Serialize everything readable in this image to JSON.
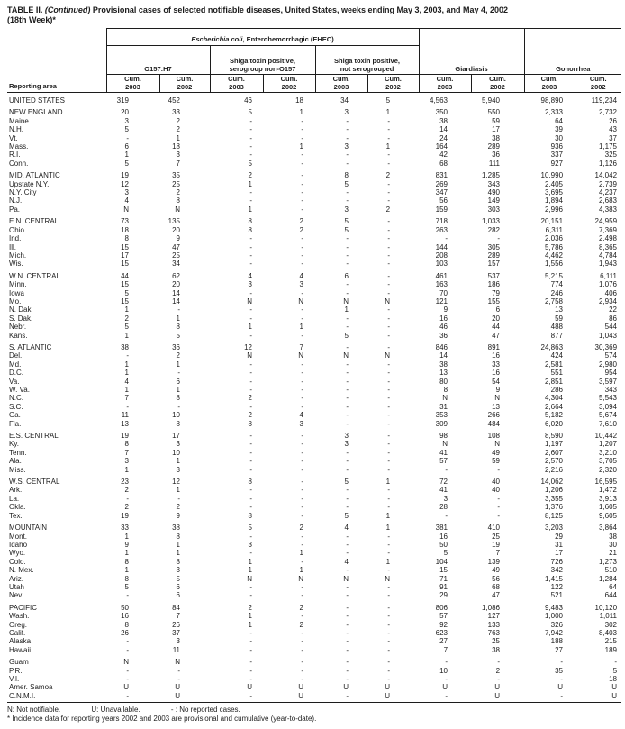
{
  "colors": {
    "ink": "#1c1c1c",
    "background": "#ffffff"
  },
  "title": {
    "label": "TABLE II.",
    "continued": "(Continued)",
    "rest": "Provisional cases of selected notifiable diseases, United States, weeks ending May 3, 2003, and May 4, 2002",
    "line2": "(18th Week)*"
  },
  "table": {
    "header": {
      "reporting_area": "Reporting area",
      "ehec_italic": "Escherichia coli",
      "ehec_rest": ", Enterohemorrhagic (EHEC)",
      "subgroups": [
        [
          "O157:H7"
        ],
        [
          "Shiga toxin positive,",
          "serogroup non-O157"
        ],
        [
          "Shiga toxin positive,",
          "not serogrouped"
        ],
        [
          "Giardiasis"
        ],
        [
          "Gonorrhea"
        ]
      ],
      "cum_label": "Cum.",
      "cum_years": [
        "2003",
        "2002",
        "2003",
        "2002",
        "2003",
        "2002",
        "2003",
        "2002",
        "2003",
        "2002"
      ]
    },
    "rows": [
      {
        "area": "UNITED STATES",
        "type": "national",
        "gap": false,
        "values": [
          "319",
          "452",
          "46",
          "18",
          "34",
          "5",
          "4,563",
          "5,940",
          "98,890",
          "119,234"
        ]
      },
      {
        "area": "NEW ENGLAND",
        "type": "region",
        "gap": true,
        "values": [
          "20",
          "33",
          "5",
          "1",
          "3",
          "1",
          "350",
          "550",
          "2,333",
          "2,732"
        ]
      },
      {
        "area": "Maine",
        "type": "state",
        "gap": false,
        "values": [
          "3",
          "2",
          "-",
          "-",
          "-",
          "-",
          "38",
          "59",
          "64",
          "26"
        ]
      },
      {
        "area": "N.H.",
        "type": "state",
        "gap": false,
        "values": [
          "5",
          "2",
          "-",
          "-",
          "-",
          "-",
          "14",
          "17",
          "39",
          "43"
        ]
      },
      {
        "area": "Vt.",
        "type": "state",
        "gap": false,
        "values": [
          "-",
          "1",
          "-",
          "-",
          "-",
          "-",
          "24",
          "38",
          "30",
          "37"
        ]
      },
      {
        "area": "Mass.",
        "type": "state",
        "gap": false,
        "values": [
          "6",
          "18",
          "-",
          "1",
          "3",
          "1",
          "164",
          "289",
          "936",
          "1,175"
        ]
      },
      {
        "area": "R.I.",
        "type": "state",
        "gap": false,
        "values": [
          "1",
          "3",
          "-",
          "-",
          "-",
          "-",
          "42",
          "36",
          "337",
          "325"
        ]
      },
      {
        "area": "Conn.",
        "type": "state",
        "gap": false,
        "values": [
          "5",
          "7",
          "5",
          "-",
          "-",
          "-",
          "68",
          "111",
          "927",
          "1,126"
        ]
      },
      {
        "area": "MID. ATLANTIC",
        "type": "region",
        "gap": true,
        "values": [
          "19",
          "35",
          "2",
          "-",
          "8",
          "2",
          "831",
          "1,285",
          "10,990",
          "14,042"
        ]
      },
      {
        "area": "Upstate N.Y.",
        "type": "state",
        "gap": false,
        "values": [
          "12",
          "25",
          "1",
          "-",
          "5",
          "-",
          "269",
          "343",
          "2,405",
          "2,739"
        ]
      },
      {
        "area": "N.Y. City",
        "type": "state",
        "gap": false,
        "values": [
          "3",
          "2",
          "-",
          "-",
          "-",
          "-",
          "347",
          "490",
          "3,695",
          "4,237"
        ]
      },
      {
        "area": "N.J.",
        "type": "state",
        "gap": false,
        "values": [
          "4",
          "8",
          "-",
          "-",
          "-",
          "-",
          "56",
          "149",
          "1,894",
          "2,683"
        ]
      },
      {
        "area": "Pa.",
        "type": "state",
        "gap": false,
        "values": [
          "N",
          "N",
          "1",
          "-",
          "3",
          "2",
          "159",
          "303",
          "2,996",
          "4,383"
        ]
      },
      {
        "area": "E.N. CENTRAL",
        "type": "region",
        "gap": true,
        "values": [
          "73",
          "135",
          "8",
          "2",
          "5",
          "-",
          "718",
          "1,033",
          "20,151",
          "24,959"
        ]
      },
      {
        "area": "Ohio",
        "type": "state",
        "gap": false,
        "values": [
          "18",
          "20",
          "8",
          "2",
          "5",
          "-",
          "263",
          "282",
          "6,311",
          "7,369"
        ]
      },
      {
        "area": "Ind.",
        "type": "state",
        "gap": false,
        "values": [
          "8",
          "9",
          "-",
          "-",
          "-",
          "-",
          "-",
          "-",
          "2,036",
          "2,498"
        ]
      },
      {
        "area": "Ill.",
        "type": "state",
        "gap": false,
        "values": [
          "15",
          "47",
          "-",
          "-",
          "-",
          "-",
          "144",
          "305",
          "5,786",
          "8,365"
        ]
      },
      {
        "area": "Mich.",
        "type": "state",
        "gap": false,
        "values": [
          "17",
          "25",
          "-",
          "-",
          "-",
          "-",
          "208",
          "289",
          "4,462",
          "4,784"
        ]
      },
      {
        "area": "Wis.",
        "type": "state",
        "gap": false,
        "values": [
          "15",
          "34",
          "-",
          "-",
          "-",
          "-",
          "103",
          "157",
          "1,556",
          "1,943"
        ]
      },
      {
        "area": "W.N. CENTRAL",
        "type": "region",
        "gap": true,
        "values": [
          "44",
          "62",
          "4",
          "4",
          "6",
          "-",
          "461",
          "537",
          "5,215",
          "6,111"
        ]
      },
      {
        "area": "Minn.",
        "type": "state",
        "gap": false,
        "values": [
          "15",
          "20",
          "3",
          "3",
          "-",
          "-",
          "163",
          "186",
          "774",
          "1,076"
        ]
      },
      {
        "area": "Iowa",
        "type": "state",
        "gap": false,
        "values": [
          "5",
          "14",
          "-",
          "-",
          "-",
          "-",
          "70",
          "79",
          "246",
          "406"
        ]
      },
      {
        "area": "Mo.",
        "type": "state",
        "gap": false,
        "values": [
          "15",
          "14",
          "N",
          "N",
          "N",
          "N",
          "121",
          "155",
          "2,758",
          "2,934"
        ]
      },
      {
        "area": "N. Dak.",
        "type": "state",
        "gap": false,
        "values": [
          "1",
          "-",
          "-",
          "-",
          "1",
          "-",
          "9",
          "6",
          "13",
          "22"
        ]
      },
      {
        "area": "S. Dak.",
        "type": "state",
        "gap": false,
        "values": [
          "2",
          "1",
          "-",
          "-",
          "-",
          "-",
          "16",
          "20",
          "59",
          "86"
        ]
      },
      {
        "area": "Nebr.",
        "type": "state",
        "gap": false,
        "values": [
          "5",
          "8",
          "1",
          "1",
          "-",
          "-",
          "46",
          "44",
          "488",
          "544"
        ]
      },
      {
        "area": "Kans.",
        "type": "state",
        "gap": false,
        "values": [
          "1",
          "5",
          "-",
          "-",
          "5",
          "-",
          "36",
          "47",
          "877",
          "1,043"
        ]
      },
      {
        "area": "S. ATLANTIC",
        "type": "region",
        "gap": true,
        "values": [
          "38",
          "36",
          "12",
          "7",
          "-",
          "-",
          "846",
          "891",
          "24,863",
          "30,369"
        ]
      },
      {
        "area": "Del.",
        "type": "state",
        "gap": false,
        "values": [
          "-",
          "2",
          "N",
          "N",
          "N",
          "N",
          "14",
          "16",
          "424",
          "574"
        ]
      },
      {
        "area": "Md.",
        "type": "state",
        "gap": false,
        "values": [
          "1",
          "1",
          "-",
          "-",
          "-",
          "-",
          "38",
          "33",
          "2,581",
          "2,980"
        ]
      },
      {
        "area": "D.C.",
        "type": "state",
        "gap": false,
        "values": [
          "1",
          "-",
          "-",
          "-",
          "-",
          "-",
          "13",
          "16",
          "551",
          "954"
        ]
      },
      {
        "area": "Va.",
        "type": "state",
        "gap": false,
        "values": [
          "4",
          "6",
          "-",
          "-",
          "-",
          "-",
          "80",
          "54",
          "2,851",
          "3,597"
        ]
      },
      {
        "area": "W. Va.",
        "type": "state",
        "gap": false,
        "values": [
          "1",
          "1",
          "-",
          "-",
          "-",
          "-",
          "8",
          "9",
          "286",
          "343"
        ]
      },
      {
        "area": "N.C.",
        "type": "state",
        "gap": false,
        "values": [
          "7",
          "8",
          "2",
          "-",
          "-",
          "-",
          "N",
          "N",
          "4,304",
          "5,543"
        ]
      },
      {
        "area": "S.C.",
        "type": "state",
        "gap": false,
        "values": [
          "-",
          "-",
          "-",
          "-",
          "-",
          "-",
          "31",
          "13",
          "2,664",
          "3,094"
        ]
      },
      {
        "area": "Ga.",
        "type": "state",
        "gap": false,
        "values": [
          "11",
          "10",
          "2",
          "4",
          "-",
          "-",
          "353",
          "266",
          "5,182",
          "5,674"
        ]
      },
      {
        "area": "Fla.",
        "type": "state",
        "gap": false,
        "values": [
          "13",
          "8",
          "8",
          "3",
          "-",
          "-",
          "309",
          "484",
          "6,020",
          "7,610"
        ]
      },
      {
        "area": "E.S. CENTRAL",
        "type": "region",
        "gap": true,
        "values": [
          "19",
          "17",
          "-",
          "-",
          "3",
          "-",
          "98",
          "108",
          "8,590",
          "10,442"
        ]
      },
      {
        "area": "Ky.",
        "type": "state",
        "gap": false,
        "values": [
          "8",
          "3",
          "-",
          "-",
          "3",
          "-",
          "N",
          "N",
          "1,197",
          "1,207"
        ]
      },
      {
        "area": "Tenn.",
        "type": "state",
        "gap": false,
        "values": [
          "7",
          "10",
          "-",
          "-",
          "-",
          "-",
          "41",
          "49",
          "2,607",
          "3,210"
        ]
      },
      {
        "area": "Ala.",
        "type": "state",
        "gap": false,
        "values": [
          "3",
          "1",
          "-",
          "-",
          "-",
          "-",
          "57",
          "59",
          "2,570",
          "3,705"
        ]
      },
      {
        "area": "Miss.",
        "type": "state",
        "gap": false,
        "values": [
          "1",
          "3",
          "-",
          "-",
          "-",
          "-",
          "-",
          "-",
          "2,216",
          "2,320"
        ]
      },
      {
        "area": "W.S. CENTRAL",
        "type": "region",
        "gap": true,
        "values": [
          "23",
          "12",
          "8",
          "-",
          "5",
          "1",
          "72",
          "40",
          "14,062",
          "16,595"
        ]
      },
      {
        "area": "Ark.",
        "type": "state",
        "gap": false,
        "values": [
          "2",
          "1",
          "-",
          "-",
          "-",
          "-",
          "41",
          "40",
          "1,206",
          "1,472"
        ]
      },
      {
        "area": "La.",
        "type": "state",
        "gap": false,
        "values": [
          "-",
          "-",
          "-",
          "-",
          "-",
          "-",
          "3",
          "-",
          "3,355",
          "3,913"
        ]
      },
      {
        "area": "Okla.",
        "type": "state",
        "gap": false,
        "values": [
          "2",
          "2",
          "-",
          "-",
          "-",
          "-",
          "28",
          "-",
          "1,376",
          "1,605"
        ]
      },
      {
        "area": "Tex.",
        "type": "state",
        "gap": false,
        "values": [
          "19",
          "9",
          "8",
          "-",
          "5",
          "1",
          "-",
          "-",
          "8,125",
          "9,605"
        ]
      },
      {
        "area": "MOUNTAIN",
        "type": "region",
        "gap": true,
        "values": [
          "33",
          "38",
          "5",
          "2",
          "4",
          "1",
          "381",
          "410",
          "3,203",
          "3,864"
        ]
      },
      {
        "area": "Mont.",
        "type": "state",
        "gap": false,
        "values": [
          "1",
          "8",
          "-",
          "-",
          "-",
          "-",
          "16",
          "25",
          "29",
          "38"
        ]
      },
      {
        "area": "Idaho",
        "type": "state",
        "gap": false,
        "values": [
          "9",
          "1",
          "3",
          "-",
          "-",
          "-",
          "50",
          "19",
          "31",
          "30"
        ]
      },
      {
        "area": "Wyo.",
        "type": "state",
        "gap": false,
        "values": [
          "1",
          "1",
          "-",
          "1",
          "-",
          "-",
          "5",
          "7",
          "17",
          "21"
        ]
      },
      {
        "area": "Colo.",
        "type": "state",
        "gap": false,
        "values": [
          "8",
          "8",
          "1",
          "-",
          "4",
          "1",
          "104",
          "139",
          "726",
          "1,273"
        ]
      },
      {
        "area": "N. Mex.",
        "type": "state",
        "gap": false,
        "values": [
          "1",
          "3",
          "1",
          "1",
          "-",
          "-",
          "15",
          "49",
          "342",
          "510"
        ]
      },
      {
        "area": "Ariz.",
        "type": "state",
        "gap": false,
        "values": [
          "8",
          "5",
          "N",
          "N",
          "N",
          "N",
          "71",
          "56",
          "1,415",
          "1,284"
        ]
      },
      {
        "area": "Utah",
        "type": "state",
        "gap": false,
        "values": [
          "5",
          "6",
          "-",
          "-",
          "-",
          "-",
          "91",
          "68",
          "122",
          "64"
        ]
      },
      {
        "area": "Nev.",
        "type": "state",
        "gap": false,
        "values": [
          "-",
          "6",
          "-",
          "-",
          "-",
          "-",
          "29",
          "47",
          "521",
          "644"
        ]
      },
      {
        "area": "PACIFIC",
        "type": "region",
        "gap": true,
        "values": [
          "50",
          "84",
          "2",
          "2",
          "-",
          "-",
          "806",
          "1,086",
          "9,483",
          "10,120"
        ]
      },
      {
        "area": "Wash.",
        "type": "state",
        "gap": false,
        "values": [
          "16",
          "7",
          "1",
          "-",
          "-",
          "-",
          "57",
          "127",
          "1,000",
          "1,011"
        ]
      },
      {
        "area": "Oreg.",
        "type": "state",
        "gap": false,
        "values": [
          "8",
          "26",
          "1",
          "2",
          "-",
          "-",
          "92",
          "133",
          "326",
          "302"
        ]
      },
      {
        "area": "Calif.",
        "type": "state",
        "gap": false,
        "values": [
          "26",
          "37",
          "-",
          "-",
          "-",
          "-",
          "623",
          "763",
          "7,942",
          "8,403"
        ]
      },
      {
        "area": "Alaska",
        "type": "state",
        "gap": false,
        "values": [
          "-",
          "3",
          "-",
          "-",
          "-",
          "-",
          "27",
          "25",
          "188",
          "215"
        ]
      },
      {
        "area": "Hawaii",
        "type": "state",
        "gap": false,
        "values": [
          "-",
          "11",
          "-",
          "-",
          "-",
          "-",
          "7",
          "38",
          "27",
          "189"
        ]
      },
      {
        "area": "Guam",
        "type": "territory",
        "gap": true,
        "values": [
          "N",
          "N",
          "-",
          "-",
          "-",
          "-",
          "-",
          "-",
          "-",
          "-"
        ]
      },
      {
        "area": "P.R.",
        "type": "territory",
        "gap": false,
        "values": [
          "-",
          "-",
          "-",
          "-",
          "-",
          "-",
          "10",
          "2",
          "35",
          "5"
        ]
      },
      {
        "area": "V.I.",
        "type": "territory",
        "gap": false,
        "values": [
          "-",
          "-",
          "-",
          "-",
          "-",
          "-",
          "-",
          "-",
          "-",
          "18"
        ]
      },
      {
        "area": "Amer. Samoa",
        "type": "territory",
        "gap": false,
        "values": [
          "U",
          "U",
          "U",
          "U",
          "U",
          "U",
          "U",
          "U",
          "U",
          "U"
        ]
      },
      {
        "area": "C.N.M.I.",
        "type": "territory",
        "gap": false,
        "values": [
          "-",
          "U",
          "-",
          "U",
          "-",
          "U",
          "-",
          "U",
          "-",
          "U"
        ]
      }
    ]
  },
  "footnotes": {
    "line1": [
      "N: Not notifiable.",
      "U: Unavailable.",
      "- : No reported cases."
    ],
    "line2": "* Incidence data for reporting years 2002 and 2003 are provisional and cumulative (year-to-date)."
  }
}
